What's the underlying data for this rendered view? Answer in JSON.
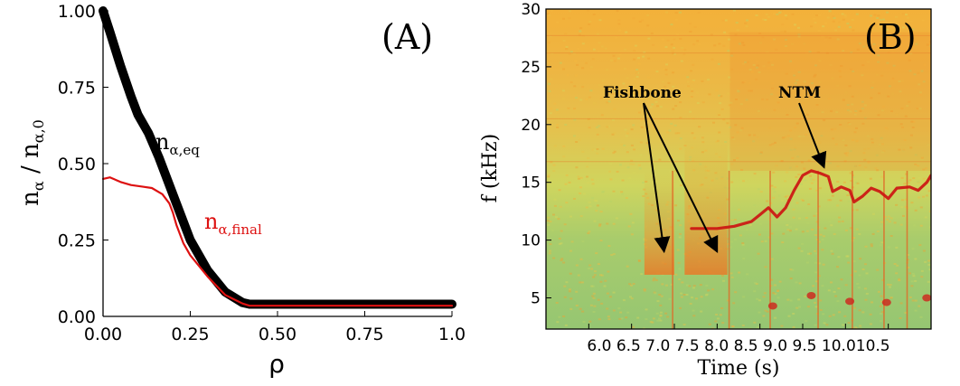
{
  "chart_data": [
    {
      "type": "line",
      "panel_label": "(A)",
      "xlabel": "ρ",
      "ylabel": "n_α / n_α,0",
      "ylabel_parts": {
        "base1": "n",
        "sub1": "α",
        "sep": " / n",
        "sub2": "α,0"
      },
      "xlim": [
        0,
        1
      ],
      "ylim": [
        0,
        1
      ],
      "x_ticks": [
        "0.00",
        "0.25",
        "0.50",
        "0.75",
        "1.0"
      ],
      "y_ticks": [
        "0.00",
        "0.25",
        "0.50",
        "0.75",
        "1.00"
      ],
      "grid": false,
      "series": [
        {
          "name": "n_α,eq",
          "label_parts": {
            "base": "n",
            "sub": "α,eq"
          },
          "color": "#000000",
          "points": [
            [
              0.0,
              1.0
            ],
            [
              0.02,
              0.93
            ],
            [
              0.05,
              0.82
            ],
            [
              0.08,
              0.72
            ],
            [
              0.1,
              0.66
            ],
            [
              0.13,
              0.6
            ],
            [
              0.16,
              0.52
            ],
            [
              0.2,
              0.4
            ],
            [
              0.25,
              0.25
            ],
            [
              0.3,
              0.15
            ],
            [
              0.35,
              0.08
            ],
            [
              0.4,
              0.045
            ],
            [
              0.42,
              0.04
            ],
            [
              0.5,
              0.04
            ],
            [
              0.75,
              0.04
            ],
            [
              1.0,
              0.04
            ]
          ]
        },
        {
          "name": "n_α,final",
          "label_parts": {
            "base": "n",
            "sub": "α,final"
          },
          "color": "#dd1111",
          "points": [
            [
              0.0,
              0.45
            ],
            [
              0.02,
              0.455
            ],
            [
              0.05,
              0.44
            ],
            [
              0.08,
              0.43
            ],
            [
              0.11,
              0.425
            ],
            [
              0.14,
              0.42
            ],
            [
              0.17,
              0.4
            ],
            [
              0.19,
              0.37
            ],
            [
              0.2,
              0.34
            ],
            [
              0.21,
              0.3
            ],
            [
              0.23,
              0.24
            ],
            [
              0.25,
              0.2
            ],
            [
              0.3,
              0.13
            ],
            [
              0.35,
              0.07
            ],
            [
              0.4,
              0.042
            ],
            [
              0.42,
              0.035
            ],
            [
              0.5,
              0.035
            ],
            [
              0.75,
              0.035
            ],
            [
              1.0,
              0.035
            ]
          ]
        }
      ]
    },
    {
      "type": "heatmap",
      "panel_label": "(B)",
      "xlabel": "Time (s)",
      "ylabel": "f (kHz)",
      "xlim": [
        6.0,
        10.5
      ],
      "ylim": [
        2.3,
        30
      ],
      "x_ticks": [
        "6.0",
        "6.5",
        "7.0",
        "7.5",
        "8.0",
        "8.5",
        "9.0",
        "9.5",
        "10.0",
        "10.5"
      ],
      "x_ticks_display": "6.0 6.5 7.0 7.5 8.0 8.5 9.0 9.5 10.010.5",
      "y_ticks": [
        "5",
        "10",
        "15",
        "20",
        "25",
        "30"
      ],
      "annotations": [
        {
          "text": "Fishbone",
          "arrows_to": [
            [
              7.38,
              9.0
            ],
            [
              8.0,
              9.0
            ]
          ]
        },
        {
          "text": "NTM",
          "arrows_to": [
            [
              9.25,
              16.3
            ]
          ]
        }
      ],
      "mode_trace": {
        "color": "#cc1111",
        "points": [
          [
            7.7,
            11.0
          ],
          [
            8.0,
            11.0
          ],
          [
            8.2,
            11.2
          ],
          [
            8.4,
            11.6
          ],
          [
            8.5,
            12.2
          ],
          [
            8.6,
            12.8
          ],
          [
            8.7,
            12.0
          ],
          [
            8.8,
            12.8
          ],
          [
            8.9,
            14.3
          ],
          [
            9.0,
            15.6
          ],
          [
            9.1,
            16.0
          ],
          [
            9.2,
            15.8
          ],
          [
            9.3,
            15.5
          ],
          [
            9.35,
            14.2
          ],
          [
            9.45,
            14.6
          ],
          [
            9.55,
            14.3
          ],
          [
            9.6,
            13.3
          ],
          [
            9.7,
            13.8
          ],
          [
            9.8,
            14.5
          ],
          [
            9.9,
            14.2
          ],
          [
            10.0,
            13.6
          ],
          [
            10.1,
            14.5
          ],
          [
            10.25,
            14.6
          ],
          [
            10.35,
            14.3
          ],
          [
            10.45,
            15.0
          ],
          [
            10.5,
            15.6
          ]
        ]
      }
    }
  ]
}
